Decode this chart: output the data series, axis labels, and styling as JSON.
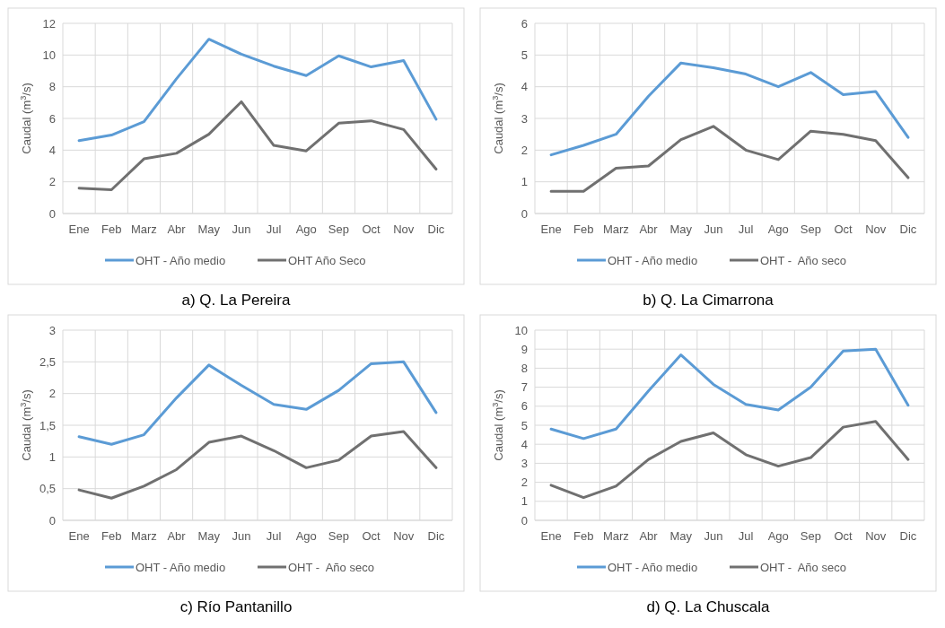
{
  "chart_data": [
    {
      "type": "line",
      "title": "a) Q. La Pereira",
      "ylabel": "Caudal (m$^{3}$/s)",
      "categories": [
        "Ene",
        "Feb",
        "Marz",
        "Abr",
        "May",
        "Jun",
        "Jul",
        "Ago",
        "Sep",
        "Oct",
        "Nov",
        "Dic"
      ],
      "ylim": [
        0,
        12
      ],
      "yticks": [
        0,
        2,
        4,
        6,
        8,
        10,
        12
      ],
      "grid": true,
      "legend": "bottom",
      "line_style": "solid",
      "series": [
        {
          "name": "OHT - Año medio",
          "color": "#5b9bd5",
          "values": [
            4.6,
            4.95,
            5.8,
            8.5,
            11,
            10.05,
            9.3,
            8.7,
            9.95,
            9.25,
            9.65,
            5.95
          ]
        },
        {
          "name": "OHT Año Seco",
          "color": "#707070",
          "values": [
            1.6,
            1.5,
            3.45,
            3.8,
            5.0,
            7.05,
            4.3,
            3.95,
            5.7,
            5.85,
            5.3,
            2.8
          ]
        }
      ]
    },
    {
      "type": "line",
      "title": "b) Q. La Cimarrona",
      "ylabel": "Caudal (m$^{3}$/s)",
      "categories": [
        "Ene",
        "Feb",
        "Marz",
        "Abr",
        "May",
        "Jun",
        "Jul",
        "Ago",
        "Sep",
        "Oct",
        "Nov",
        "Dic"
      ],
      "ylim": [
        0,
        6
      ],
      "yticks": [
        0,
        1,
        2,
        3,
        4,
        5,
        6
      ],
      "grid": true,
      "legend": "bottom",
      "line_style": "solid",
      "series": [
        {
          "name": "OHT - Año medio",
          "color": "#5b9bd5",
          "values": [
            1.85,
            2.15,
            2.5,
            3.7,
            4.75,
            4.6,
            4.4,
            4.0,
            4.45,
            3.75,
            3.85,
            2.4
          ]
        },
        {
          "name": "OHT -  Año seco",
          "color": "#707070",
          "values": [
            0.7,
            0.7,
            1.43,
            1.5,
            2.33,
            2.75,
            2.0,
            1.7,
            2.6,
            2.5,
            2.3,
            1.13
          ]
        }
      ]
    },
    {
      "type": "line",
      "title": "c) Río Pantanillo",
      "ylabel": "Caudal (m$^{3}$/s)",
      "categories": [
        "Ene",
        "Feb",
        "Marz",
        "Abr",
        "May",
        "Jun",
        "Jul",
        "Ago",
        "Sep",
        "Oct",
        "Nov",
        "Dic"
      ],
      "ylim": [
        0,
        3
      ],
      "yticks": [
        0,
        {
          "value": 0.5,
          "label": "0,5"
        },
        1,
        {
          "value": 1.5,
          "label": "1,5"
        },
        2,
        {
          "value": 2.5,
          "label": "2,5"
        },
        3
      ],
      "grid": true,
      "legend": "bottom",
      "line_style": "solid",
      "series": [
        {
          "name": "OHT - Año medio",
          "color": "#5b9bd5",
          "values": [
            1.32,
            1.2,
            1.35,
            1.93,
            2.45,
            2.13,
            1.83,
            1.75,
            2.05,
            2.47,
            2.5,
            1.7
          ]
        },
        {
          "name": "OHT -  Año seco",
          "color": "#707070",
          "values": [
            0.48,
            0.35,
            0.54,
            0.8,
            1.23,
            1.33,
            1.1,
            0.83,
            0.95,
            1.33,
            1.4,
            0.83
          ]
        }
      ]
    },
    {
      "type": "line",
      "title": "d) Q. La Chuscala",
      "ylabel": "Caudal (m$^{3}$/s)",
      "categories": [
        "Ene",
        "Feb",
        "Marz",
        "Abr",
        "May",
        "Jun",
        "Jul",
        "Ago",
        "Sep",
        "Oct",
        "Nov",
        "Dic"
      ],
      "ylim": [
        0,
        10
      ],
      "yticks": [
        0,
        1,
        2,
        3,
        4,
        5,
        6,
        7,
        8,
        9,
        10
      ],
      "grid": true,
      "legend": "bottom",
      "line_style": "solid",
      "series": [
        {
          "name": "OHT - Año medio",
          "color": "#5b9bd5",
          "values": [
            4.8,
            4.3,
            4.8,
            6.8,
            8.7,
            7.15,
            6.1,
            5.8,
            7.0,
            8.9,
            9.0,
            6.05
          ]
        },
        {
          "name": "OHT -  Año seco",
          "color": "#707070",
          "values": [
            1.85,
            1.2,
            1.8,
            3.2,
            4.15,
            4.6,
            3.45,
            2.85,
            3.3,
            4.9,
            5.2,
            3.2
          ]
        }
      ]
    }
  ]
}
